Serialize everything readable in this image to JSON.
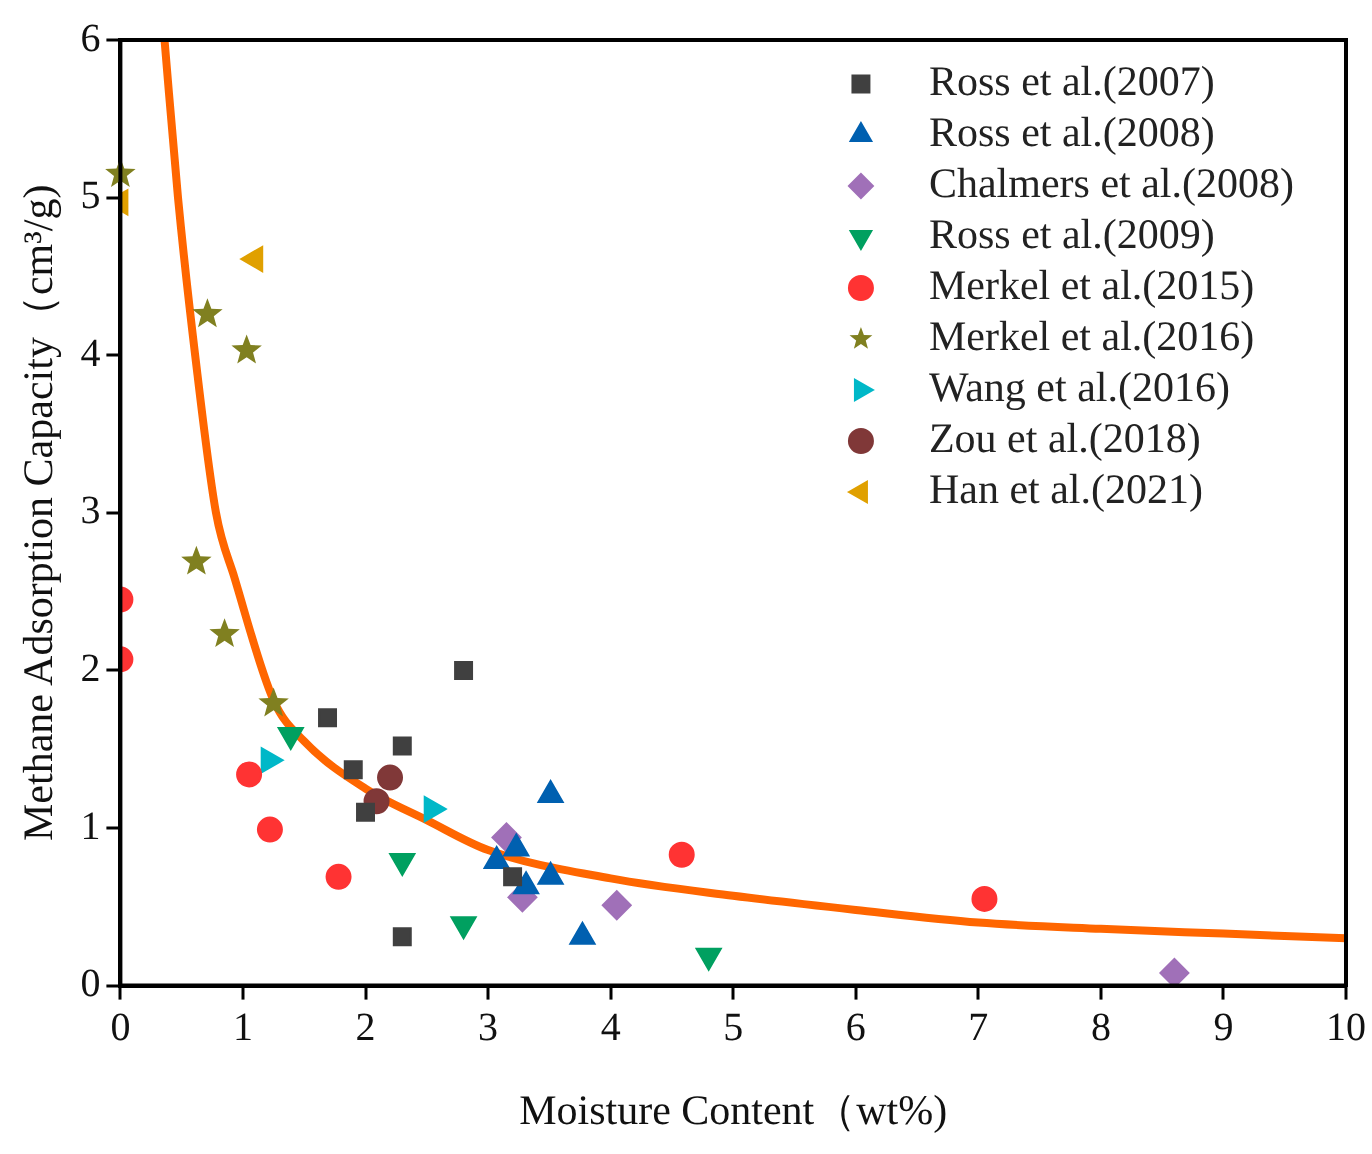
{
  "chart_data": {
    "type": "scatter",
    "xlabel": "Moisture Content（wt%)",
    "ylabel": "Methane Adsorption Capacity（cm³/g)",
    "xlim": [
      0,
      10
    ],
    "xticks": [
      0,
      1,
      2,
      3,
      4,
      5,
      6,
      7,
      8,
      9,
      10
    ],
    "ylim": [
      0,
      6
    ],
    "yticks": [
      0,
      1,
      2,
      3,
      4,
      5,
      6
    ],
    "grid": false,
    "legend": "top right",
    "series": [
      {
        "name": "Ross et al.(2007)",
        "color": "#404040",
        "marker": "square",
        "x": [
          1.69,
          2.8,
          2.3,
          1.9,
          2.0,
          2.3,
          3.2
        ],
        "values": [
          1.7,
          2.0,
          1.52,
          1.37,
          1.1,
          0.31,
          0.69
        ]
      },
      {
        "name": "Ross et al.(2008)",
        "color": "#0060b0",
        "marker": "triangle",
        "x": [
          3.51,
          3.07,
          3.23,
          3.31,
          3.51,
          3.77
        ],
        "values": [
          1.21,
          0.79,
          0.87,
          0.63,
          0.69,
          0.31
        ]
      },
      {
        "name": "Chalmers et al.(2008)",
        "color": "#a070b8",
        "marker": "diamond",
        "x": [
          3.15,
          3.28,
          4.05,
          8.6
        ],
        "values": [
          0.94,
          0.56,
          0.51,
          0.08
        ]
      },
      {
        "name": "Ross et al.(2009)",
        "color": "#00a060",
        "marker": "triangle_down",
        "x": [
          1.39,
          2.3,
          2.8,
          4.8
        ],
        "values": [
          1.59,
          0.79,
          0.39,
          0.19
        ]
      },
      {
        "name": "Merkel et al.(2015)",
        "color": "#ff3333",
        "marker": "circle",
        "x": [
          0,
          0,
          1.05,
          1.22,
          1.78,
          4.58,
          7.05
        ],
        "values": [
          2.45,
          2.07,
          1.34,
          0.99,
          0.69,
          0.83,
          0.55
        ]
      },
      {
        "name": "Merkel et al.(2016)",
        "color": "#808020",
        "marker": "star",
        "x": [
          0,
          0.71,
          1.03,
          0.62,
          0.85,
          1.25
        ],
        "values": [
          5.15,
          4.26,
          4.03,
          2.69,
          2.23,
          1.79
        ]
      },
      {
        "name": "Wang et al.(2016)",
        "color": "#00b8c8",
        "marker": "triangle_right",
        "x": [
          1.21,
          2.54
        ],
        "values": [
          1.43,
          1.12
        ]
      },
      {
        "name": "Zou et al.(2018)",
        "color": "#803838",
        "marker": "circle",
        "x": [
          2.2,
          2.09
        ],
        "values": [
          1.32,
          1.17
        ]
      },
      {
        "name": "Han et al.(2021)",
        "color": "#e0a000",
        "marker": "triangle_left",
        "x": [
          0,
          1.1
        ],
        "values": [
          4.97,
          4.61
        ]
      },
      {
        "type": "line",
        "color": "#ff6600",
        "marker": "none",
        "x": [
          0.36,
          0.47,
          0.61,
          0.78,
          0.93,
          1.25,
          1.5,
          2.0,
          2.5,
          3,
          4,
          5,
          6,
          7,
          8,
          9,
          10
        ],
        "values": [
          6.0,
          5.0,
          4.0,
          3.0,
          2.59,
          1.81,
          1.55,
          1.25,
          1.05,
          0.86,
          0.68,
          0.57,
          0.48,
          0.4,
          0.36,
          0.33,
          0.3
        ]
      }
    ]
  }
}
